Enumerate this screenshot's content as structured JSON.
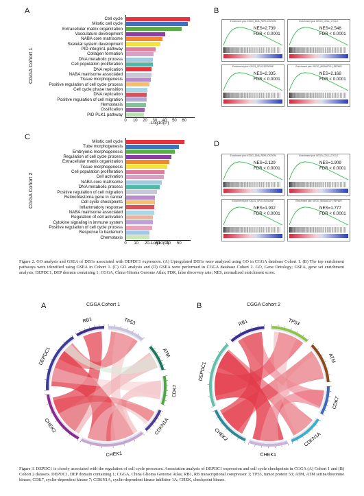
{
  "fig2": {
    "panel_a": {
      "letter": "A",
      "cohort": "CGGA Cohort 1",
      "xlabel": "-Log10(P)",
      "ticks": [
        "0",
        "10",
        "20",
        "30",
        "40",
        "50",
        "60"
      ]
    },
    "panel_b": {
      "letter": "B"
    },
    "panel_c": {
      "letter": "C",
      "cohort": "CGGA Cohort 2",
      "xlabel": "-Log10(P)",
      "ticks": [
        "0",
        "10",
        "20",
        "30",
        "40",
        "50"
      ]
    },
    "panel_d": {
      "letter": "D"
    },
    "caption": "Figure 2. GO analysis and GSEA of DEGs associated with DEPDC1 expression. (A) Upregulated DEGs were analyzed using GO in CGGA database Cohort 1. (B) The top enrichment pathways were identified using GSEA in Cohort 1. (C) GO analysis and (D) GSEA were performed in CGGA database Cohort 2. GO, Gene Ontology; GSEA, gene set enrichment analysis; DEPDC1, DEP domain containing 1; CGGA, China Glioma Genome Atlas; FDR, false discovery rate; NES, normalized enrichment score."
  },
  "chart_data": [
    {
      "type": "bar",
      "xlabel": "-Log10(P)",
      "xlim": [
        0,
        70
      ],
      "categories": [
        "Cell cycle",
        "Mitotic cell cycle",
        "Extracellular matrix organization",
        "Vasculature development",
        "NABA core matrisome",
        "Skeletal system development",
        "PID integrin1 pathway",
        "Collagen formation",
        "DNA metabolic process",
        "Cell population proliferation",
        "DNA replication",
        "NABA matrisome associated",
        "Tissue morphogenesis",
        "Positive regulation of cell cycle process",
        "Cell cycle phase transition",
        "DNA replication",
        "Positive regulation of cell migration",
        "Hemostasis",
        "Ossification",
        "PID PLK1 pathway"
      ],
      "values": [
        65,
        63,
        57,
        40,
        37,
        35,
        30,
        28,
        27,
        27,
        26,
        26,
        25,
        24,
        22,
        21,
        21,
        20,
        19,
        18
      ],
      "colors": [
        "#e8323c",
        "#3a73c4",
        "#5aae45",
        "#8c3fa0",
        "#f08a2c",
        "#f2e43c",
        "#e07c9c",
        "#d9a0c6",
        "#9ecbe0",
        "#4fb8a7",
        "#e8323c",
        "#c8c8d8",
        "#b98ad0",
        "#f2c074",
        "#a8d8e8",
        "#d94f5a",
        "#b4a8d8",
        "#88c09c",
        "#9c5ea8",
        "#b8e0b0"
      ]
    },
    {
      "type": "bar",
      "xlabel": "-Log10(P)",
      "xlim": [
        0,
        60
      ],
      "categories": [
        "Mitotic cell cycle",
        "Tube morphogenesis",
        "Embryonic morphogenesis",
        "Regulation of cell cycle process",
        "Extracellular matrix organization",
        "Tissue morphogenesis",
        "Cell population proliferation",
        "Cell activation",
        "NABA core matrisome",
        "DNA metabolic process",
        "Positive regulation of cell migration",
        "Retinoblastoma gene in cancer",
        "Cell cycle checkpoints",
        "Inflammatory response",
        "NABA matrisome associated",
        "Regulation of cell activation",
        "Cytokine signaling in immune system",
        "Positive regulation of cell cycle process",
        "Response to bacterium",
        "Chemotaxis"
      ],
      "values": [
        54,
        49,
        45,
        42,
        40,
        38,
        36,
        35,
        33,
        31,
        29,
        27,
        27,
        26,
        26,
        25,
        25,
        24,
        22,
        22
      ],
      "colors": [
        "#e8323c",
        "#3a73c4",
        "#5aae45",
        "#8c3fa0",
        "#f08a2c",
        "#f2e43c",
        "#e07c9c",
        "#d9a0c6",
        "#9ecbe0",
        "#4fb8a7",
        "#c8c8d8",
        "#b98ad0",
        "#f2c074",
        "#d94f5a",
        "#a8d8e8",
        "#e8b4a0",
        "#c0a0d8",
        "#f0a0b0",
        "#a0c8e8",
        "#c8e8b8"
      ]
    }
  ],
  "gsea_b": [
    {
      "title": "Enrichment plot: KEGG_DNA_REPLICATION",
      "nes": "NES=2.739",
      "fdr": "FDR < 0.0001"
    },
    {
      "title": "Enrichment plot: KEGG_CELL_CYCLE",
      "nes": "NES=2.548",
      "fdr": "FDR < 0.0001"
    },
    {
      "title": "Enrichment plot: KEGG_SPLICEOSOME",
      "nes": "NES=2.335",
      "fdr": "FDR < 0.0001"
    },
    {
      "title": "Enrichment plot: KEGG_MISMATCH_REPAIR",
      "nes": "NES=2.168",
      "fdr": "FDR < 0.0001"
    }
  ],
  "gsea_d": [
    {
      "title": "Enrichment plot: KEGG_DNA_REPLICATION",
      "nes": "NES=2.129",
      "fdr": "FDR < 0.0001"
    },
    {
      "title": "Enrichment plot: KEGG_CELL_CYCLE",
      "nes": "NES=1.909",
      "fdr": "FDR < 0.0001"
    },
    {
      "title": "Enrichment plot: KEGG_SPLICEOSOME",
      "nes": "NES=1.902",
      "fdr": "FDR < 0.0001"
    },
    {
      "title": "Enrichment plot: KEGG_MISMATCH_REPAIR",
      "nes": "NES=1.777",
      "fdr": "FDR < 0.0001"
    }
  ],
  "fig3": {
    "panel_a": {
      "letter": "A",
      "title": "CGGA Cohort 1",
      "genes": [
        "RB1",
        "TP53",
        "ATM",
        "CDK7",
        "CDKN1A",
        "CHEK1",
        "CHEK2",
        "DEPDC1"
      ]
    },
    "panel_b": {
      "letter": "B",
      "title": "CGGA Cohort 2",
      "genes": [
        "RB1",
        "TP53",
        "ATM",
        "CDK7",
        "CDKN1A",
        "CHEK1",
        "CHEK2",
        "DEPDC1"
      ]
    },
    "caption": "Figure 3. DEPDC1 is closely associated with the regulation of cell cycle processes. Association analysis of DEPDC1 expression and cell cycle checkpoints in CGGA (A) Cohort 1 and (B) Cohort 2 datasets. DEPDC1, DEP domain containing 1; CGGA, China Glioma Genome Atlas; RB1, RB transcriptional corepressor 1; TP53, tumor protein 53; ATM, ATM serine/threonine kinase; CDK7, cyclin-dependent kinase 7; CDKN1A, cyclin-dependent kinase inhibitor 1A; CHEK, checkpoint kinase."
  }
}
